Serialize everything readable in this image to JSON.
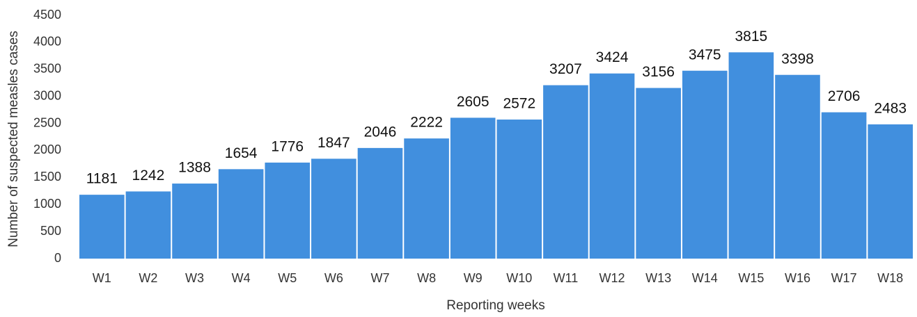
{
  "chart_data": {
    "type": "bar",
    "categories": [
      "W1",
      "W2",
      "W3",
      "W4",
      "W5",
      "W6",
      "W7",
      "W8",
      "W9",
      "W10",
      "W11",
      "W12",
      "W13",
      "W14",
      "W15",
      "W16",
      "W17",
      "W18"
    ],
    "values": [
      1181,
      1242,
      1388,
      1654,
      1776,
      1847,
      2046,
      2222,
      2605,
      2572,
      3207,
      3424,
      3156,
      3475,
      3815,
      3398,
      2706,
      2483
    ],
    "color": "#418fde",
    "ylim": [
      0,
      4500
    ],
    "yticks": [
      0,
      500,
      1000,
      1500,
      2000,
      2500,
      3000,
      3500,
      4000,
      4500
    ],
    "x_label": "Reporting weeks",
    "y_label": "Number of suspected measles cases",
    "grid": false
  }
}
